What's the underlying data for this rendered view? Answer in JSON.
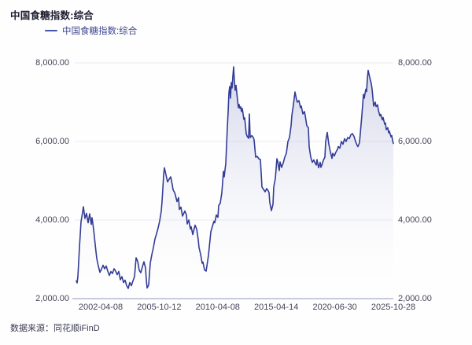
{
  "header": {
    "title": "中国食糖指数:综合"
  },
  "legend": {
    "label": "中国食糖指数:综合"
  },
  "footer": {
    "source": "数据来源：同花顺iFinD"
  },
  "colors": {
    "line": "#333c96",
    "legend_mark": "#4355a8",
    "legend_text": "#3e478f",
    "area_top": "#6973b8",
    "grid": "#eaebf4",
    "axis": "#a8adcb"
  },
  "chart_data": {
    "type": "line",
    "title": "中国食糖指数:综合",
    "legend_entries": [
      "中国食糖指数:综合"
    ],
    "legend_position": "top-left",
    "grid": true,
    "x_axis": {
      "kind": "category-dates",
      "tick_labels": [
        "2002-04-08",
        "2005-10-12",
        "2010-04-08",
        "2015-04-14",
        "2020-06-30",
        "2025-10-28"
      ],
      "tick_positions": [
        0.0815,
        0.2652,
        0.4489,
        0.6326,
        0.8163,
        1.0
      ]
    },
    "y_axis": {
      "min": 2000,
      "max": 8000,
      "tick_values": [
        2000,
        4000,
        6000,
        8000
      ],
      "tick_labels": [
        "2,000.00",
        "4,000.00",
        "6,000.00",
        "8,000.00"
      ],
      "sides": "both"
    },
    "series": [
      {
        "name": "中国食糖指数:综合",
        "color": "#333c96",
        "points": [
          [
            0.0049,
            2450
          ],
          [
            0.0074,
            2400
          ],
          [
            0.0099,
            2560
          ],
          [
            0.0148,
            3300
          ],
          [
            0.0198,
            3960
          ],
          [
            0.0247,
            4200
          ],
          [
            0.0272,
            4340
          ],
          [
            0.0321,
            4040
          ],
          [
            0.037,
            4170
          ],
          [
            0.042,
            3930
          ],
          [
            0.0469,
            4160
          ],
          [
            0.0519,
            3890
          ],
          [
            0.0543,
            4060
          ],
          [
            0.0593,
            3760
          ],
          [
            0.0642,
            3380
          ],
          [
            0.0691,
            3020
          ],
          [
            0.0741,
            2830
          ],
          [
            0.079,
            2670
          ],
          [
            0.084,
            2750
          ],
          [
            0.0889,
            2850
          ],
          [
            0.0938,
            2760
          ],
          [
            0.0988,
            2830
          ],
          [
            0.1037,
            2700
          ],
          [
            0.1086,
            2590
          ],
          [
            0.1136,
            2690
          ],
          [
            0.1185,
            2640
          ],
          [
            0.1235,
            2760
          ],
          [
            0.1284,
            2700
          ],
          [
            0.1333,
            2610
          ],
          [
            0.1383,
            2690
          ],
          [
            0.1432,
            2480
          ],
          [
            0.1481,
            2560
          ],
          [
            0.1531,
            2410
          ],
          [
            0.158,
            2470
          ],
          [
            0.163,
            2330
          ],
          [
            0.1679,
            2260
          ],
          [
            0.1728,
            2410
          ],
          [
            0.1778,
            2330
          ],
          [
            0.1827,
            2450
          ],
          [
            0.1877,
            2560
          ],
          [
            0.1926,
            3040
          ],
          [
            0.1975,
            2950
          ],
          [
            0.2025,
            2720
          ],
          [
            0.2074,
            2660
          ],
          [
            0.2123,
            2810
          ],
          [
            0.2173,
            2940
          ],
          [
            0.2222,
            2780
          ],
          [
            0.2247,
            2480
          ],
          [
            0.2272,
            2270
          ],
          [
            0.2321,
            2350
          ],
          [
            0.237,
            2900
          ],
          [
            0.242,
            3120
          ],
          [
            0.2469,
            3300
          ],
          [
            0.2519,
            3520
          ],
          [
            0.2568,
            3650
          ],
          [
            0.2617,
            3800
          ],
          [
            0.2667,
            3980
          ],
          [
            0.2716,
            4230
          ],
          [
            0.2741,
            4480
          ],
          [
            0.2765,
            4800
          ],
          [
            0.279,
            5150
          ],
          [
            0.2815,
            5330
          ],
          [
            0.2864,
            5150
          ],
          [
            0.2914,
            4970
          ],
          [
            0.2963,
            5040
          ],
          [
            0.3012,
            5100
          ],
          [
            0.3062,
            4900
          ],
          [
            0.3086,
            4770
          ],
          [
            0.3136,
            4700
          ],
          [
            0.316,
            4630
          ],
          [
            0.321,
            4470
          ],
          [
            0.3259,
            4570
          ],
          [
            0.3284,
            4270
          ],
          [
            0.3333,
            4330
          ],
          [
            0.3383,
            4100
          ],
          [
            0.3457,
            4230
          ],
          [
            0.3506,
            4130
          ],
          [
            0.3531,
            3900
          ],
          [
            0.358,
            4000
          ],
          [
            0.363,
            3770
          ],
          [
            0.3654,
            3830
          ],
          [
            0.3704,
            3630
          ],
          [
            0.3778,
            3870
          ],
          [
            0.3827,
            3770
          ],
          [
            0.3877,
            3500
          ],
          [
            0.3901,
            3300
          ],
          [
            0.3951,
            3130
          ],
          [
            0.4,
            2900
          ],
          [
            0.4025,
            2930
          ],
          [
            0.4074,
            2730
          ],
          [
            0.4123,
            2700
          ],
          [
            0.4148,
            2830
          ],
          [
            0.4198,
            3100
          ],
          [
            0.4247,
            3500
          ],
          [
            0.4272,
            3700
          ],
          [
            0.4321,
            3840
          ],
          [
            0.437,
            3970
          ],
          [
            0.4395,
            3930
          ],
          [
            0.4444,
            4130
          ],
          [
            0.4494,
            4070
          ],
          [
            0.4519,
            4370
          ],
          [
            0.4568,
            4430
          ],
          [
            0.4617,
            4700
          ],
          [
            0.4642,
            4960
          ],
          [
            0.4667,
            5240
          ],
          [
            0.4691,
            5100
          ],
          [
            0.4741,
            5440
          ],
          [
            0.4765,
            5900
          ],
          [
            0.479,
            6360
          ],
          [
            0.4815,
            6760
          ],
          [
            0.484,
            7240
          ],
          [
            0.4864,
            7400
          ],
          [
            0.4889,
            7100
          ],
          [
            0.4914,
            7500
          ],
          [
            0.4938,
            7360
          ],
          [
            0.4963,
            7660
          ],
          [
            0.4988,
            7900
          ],
          [
            0.5012,
            7500
          ],
          [
            0.5037,
            7300
          ],
          [
            0.5062,
            7430
          ],
          [
            0.5086,
            7240
          ],
          [
            0.5111,
            7040
          ],
          [
            0.5136,
            6860
          ],
          [
            0.516,
            6940
          ],
          [
            0.5185,
            6840
          ],
          [
            0.521,
            6880
          ],
          [
            0.5235,
            6760
          ],
          [
            0.5259,
            6840
          ],
          [
            0.5284,
            6700
          ],
          [
            0.5309,
            6560
          ],
          [
            0.5333,
            6600
          ],
          [
            0.5358,
            6400
          ],
          [
            0.5383,
            6200
          ],
          [
            0.5407,
            6140
          ],
          [
            0.5457,
            6080
          ],
          [
            0.5481,
            6700
          ],
          [
            0.5506,
            6100
          ],
          [
            0.5556,
            6150
          ],
          [
            0.5605,
            6100
          ],
          [
            0.563,
            6040
          ],
          [
            0.5679,
            5600
          ],
          [
            0.5728,
            5620
          ],
          [
            0.5778,
            5560
          ],
          [
            0.5827,
            5540
          ],
          [
            0.5852,
            5200
          ],
          [
            0.5877,
            4840
          ],
          [
            0.5926,
            4780
          ],
          [
            0.5975,
            4720
          ],
          [
            0.6025,
            4800
          ],
          [
            0.6074,
            4740
          ],
          [
            0.6099,
            4700
          ],
          [
            0.6123,
            4440
          ],
          [
            0.6173,
            4240
          ],
          [
            0.6222,
            4400
          ],
          [
            0.6247,
            4840
          ],
          [
            0.6296,
            5060
          ],
          [
            0.6346,
            5560
          ],
          [
            0.637,
            5500
          ],
          [
            0.642,
            5260
          ],
          [
            0.6444,
            5480
          ],
          [
            0.6494,
            5340
          ],
          [
            0.6543,
            5450
          ],
          [
            0.6593,
            5600
          ],
          [
            0.6642,
            5700
          ],
          [
            0.6691,
            6000
          ],
          [
            0.6741,
            6100
          ],
          [
            0.679,
            6400
          ],
          [
            0.6815,
            6660
          ],
          [
            0.6864,
            6940
          ],
          [
            0.6914,
            7260
          ],
          [
            0.6963,
            7060
          ],
          [
            0.6988,
            7000
          ],
          [
            0.7037,
            7040
          ],
          [
            0.7086,
            6860
          ],
          [
            0.7111,
            6900
          ],
          [
            0.716,
            6700
          ],
          [
            0.721,
            6760
          ],
          [
            0.7235,
            6660
          ],
          [
            0.7284,
            6400
          ],
          [
            0.7333,
            6350
          ],
          [
            0.7358,
            5870
          ],
          [
            0.7407,
            5600
          ],
          [
            0.7457,
            5470
          ],
          [
            0.7506,
            5530
          ],
          [
            0.7531,
            5470
          ],
          [
            0.758,
            5400
          ],
          [
            0.7605,
            5540
          ],
          [
            0.7654,
            5330
          ],
          [
            0.7704,
            5470
          ],
          [
            0.7728,
            5340
          ],
          [
            0.7778,
            5450
          ],
          [
            0.7802,
            5520
          ],
          [
            0.7852,
            5600
          ],
          [
            0.7877,
            6000
          ],
          [
            0.7926,
            6230
          ],
          [
            0.7975,
            5930
          ],
          [
            0.8025,
            5730
          ],
          [
            0.8074,
            5570
          ],
          [
            0.8099,
            5700
          ],
          [
            0.8148,
            5630
          ],
          [
            0.8198,
            5730
          ],
          [
            0.8247,
            5800
          ],
          [
            0.8272,
            5870
          ],
          [
            0.8321,
            5830
          ],
          [
            0.837,
            6000
          ],
          [
            0.842,
            5930
          ],
          [
            0.8469,
            6070
          ],
          [
            0.8519,
            6000
          ],
          [
            0.8568,
            6100
          ],
          [
            0.8617,
            6070
          ],
          [
            0.8667,
            6170
          ],
          [
            0.8716,
            6200
          ],
          [
            0.8765,
            6130
          ],
          [
            0.8815,
            6000
          ],
          [
            0.8864,
            5900
          ],
          [
            0.8889,
            5870
          ],
          [
            0.8938,
            5970
          ],
          [
            0.8963,
            6200
          ],
          [
            0.9012,
            6670
          ],
          [
            0.9062,
            7200
          ],
          [
            0.9086,
            7100
          ],
          [
            0.9136,
            7330
          ],
          [
            0.916,
            7270
          ],
          [
            0.9185,
            7600
          ],
          [
            0.921,
            7810
          ],
          [
            0.9259,
            7630
          ],
          [
            0.9309,
            7470
          ],
          [
            0.9333,
            7330
          ],
          [
            0.9383,
            6900
          ],
          [
            0.9432,
            7000
          ],
          [
            0.9457,
            6890
          ],
          [
            0.9506,
            6930
          ],
          [
            0.9531,
            6790
          ],
          [
            0.958,
            6650
          ],
          [
            0.9605,
            6690
          ],
          [
            0.9654,
            6550
          ],
          [
            0.9679,
            6610
          ],
          [
            0.9728,
            6440
          ],
          [
            0.9753,
            6470
          ],
          [
            0.9778,
            6300
          ],
          [
            0.9827,
            6350
          ],
          [
            0.9852,
            6220
          ],
          [
            0.9877,
            6260
          ],
          [
            0.9926,
            6120
          ],
          [
            0.9951,
            6150
          ],
          [
            0.9975,
            6030
          ],
          [
            1.0,
            5950
          ]
        ]
      }
    ]
  }
}
